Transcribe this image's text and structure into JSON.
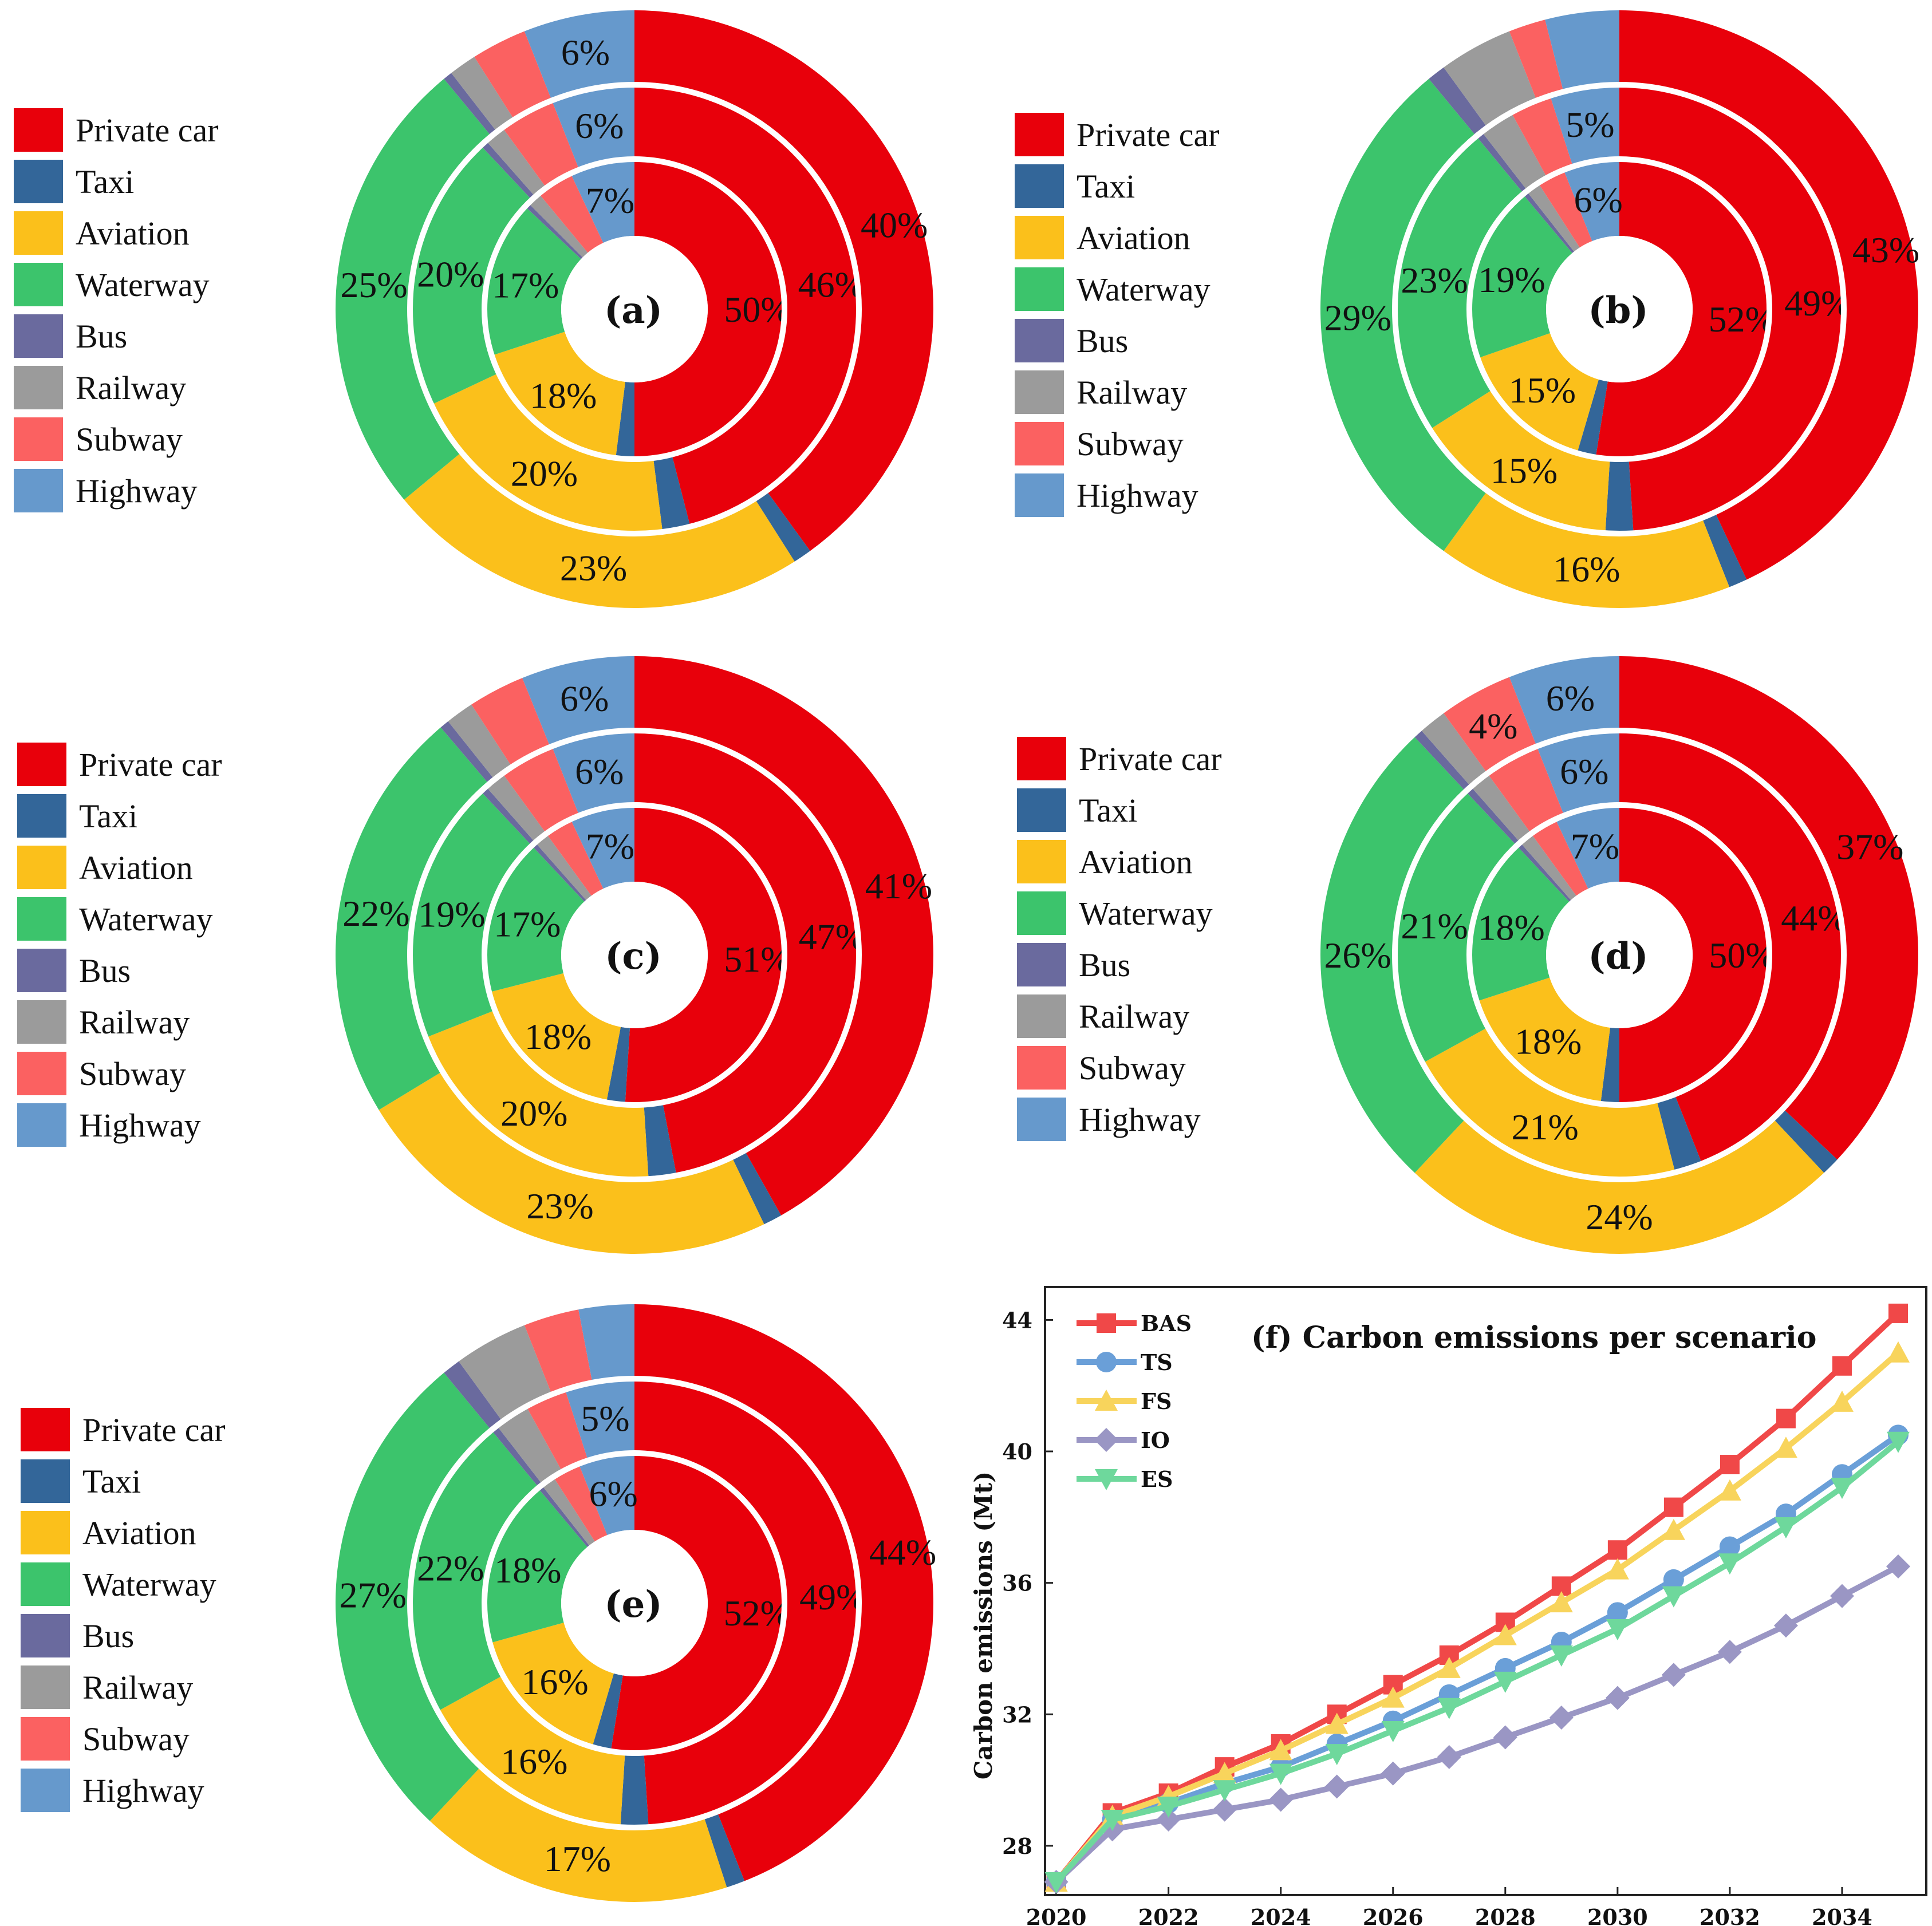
{
  "categories": [
    {
      "key": "private_car",
      "label": "Private car",
      "color": "#e8000b"
    },
    {
      "key": "taxi",
      "label": "Taxi",
      "color": "#336699"
    },
    {
      "key": "aviation",
      "label": "Aviation",
      "color": "#fbc01b"
    },
    {
      "key": "waterway",
      "label": "Waterway",
      "color": "#3cc46c"
    },
    {
      "key": "bus",
      "label": "Bus",
      "color": "#6a6a9e"
    },
    {
      "key": "railway",
      "label": "Railway",
      "color": "#9b9b9b"
    },
    {
      "key": "subway",
      "label": "Subway",
      "color": "#fb6161"
    },
    {
      "key": "highway",
      "label": "Highway",
      "color": "#6699cc"
    }
  ],
  "chart_data": [
    {
      "type": "pie",
      "subtype": "nested-donut",
      "title": "(a)",
      "ring_order": [
        "inner",
        "middle",
        "outer"
      ],
      "rings": [
        {
          "ring": "inner",
          "values": [
            50,
            2,
            18,
            17,
            0.5,
            1.5,
            4,
            7
          ],
          "labels": [
            "50%",
            "",
            "18%",
            "17%",
            "",
            "",
            "",
            "7%"
          ]
        },
        {
          "ring": "middle",
          "values": [
            46,
            2,
            20,
            20,
            0.5,
            1.5,
            4,
            6
          ],
          "labels": [
            "46%",
            "",
            "20%",
            "20%",
            "",
            "",
            "",
            "6%"
          ]
        },
        {
          "ring": "outer",
          "values": [
            40,
            1,
            23,
            25,
            0.5,
            1.5,
            3,
            6
          ],
          "labels": [
            "40%",
            "",
            "23%",
            "25%",
            "",
            "",
            "",
            "6%"
          ]
        }
      ]
    },
    {
      "type": "pie",
      "subtype": "nested-donut",
      "title": "(b)",
      "ring_order": [
        "inner",
        "middle",
        "outer"
      ],
      "rings": [
        {
          "ring": "inner",
          "values": [
            52,
            2,
            15,
            19,
            0.5,
            1.5,
            3,
            6
          ],
          "labels": [
            "52%",
            "",
            "15%",
            "19%",
            "",
            "",
            "",
            "6%"
          ]
        },
        {
          "ring": "middle",
          "values": [
            49,
            2,
            15,
            23,
            0.5,
            2.5,
            3,
            5
          ],
          "labels": [
            "49%",
            "",
            "15%",
            "23%",
            "",
            "",
            "",
            "5%"
          ]
        },
        {
          "ring": "outer",
          "values": [
            43,
            1,
            16,
            29,
            1,
            4,
            2,
            4
          ],
          "labels": [
            "43%",
            "",
            "16%",
            "29%",
            "",
            "",
            "",
            ""
          ]
        }
      ]
    },
    {
      "type": "pie",
      "subtype": "nested-donut",
      "title": "(c)",
      "ring_order": [
        "inner",
        "middle",
        "outer"
      ],
      "rings": [
        {
          "ring": "inner",
          "values": [
            51,
            2,
            18,
            17,
            0.5,
            1.5,
            3,
            7
          ],
          "labels": [
            "51%",
            "",
            "18%",
            "17%",
            "",
            "",
            "",
            "7%"
          ]
        },
        {
          "ring": "middle",
          "values": [
            47,
            2,
            20,
            19,
            0.5,
            1.5,
            4,
            6
          ],
          "labels": [
            "47%",
            "",
            "20%",
            "19%",
            "",
            "",
            "",
            "6%"
          ]
        },
        {
          "ring": "outer",
          "values": [
            41,
            1,
            23,
            22,
            0.5,
            1.5,
            3,
            6
          ],
          "labels": [
            "41%",
            "",
            "23%",
            "22%",
            "",
            "",
            "",
            "6%"
          ]
        }
      ]
    },
    {
      "type": "pie",
      "subtype": "nested-donut",
      "title": "(d)",
      "ring_order": [
        "inner",
        "middle",
        "outer"
      ],
      "rings": [
        {
          "ring": "inner",
          "values": [
            50,
            2,
            18,
            18,
            0.5,
            1.5,
            3,
            7
          ],
          "labels": [
            "50%",
            "",
            "18%",
            "18%",
            "",
            "",
            "",
            "7%"
          ]
        },
        {
          "ring": "middle",
          "values": [
            44,
            2,
            21,
            21,
            0.5,
            1.5,
            4,
            6
          ],
          "labels": [
            "44%",
            "",
            "21%",
            "21%",
            "",
            "",
            "",
            "6%"
          ]
        },
        {
          "ring": "outer",
          "values": [
            37,
            1,
            24,
            26,
            0.5,
            1.5,
            4,
            6
          ],
          "labels": [
            "37%",
            "",
            "24%",
            "26%",
            "",
            "",
            "4%",
            "6%"
          ]
        }
      ]
    },
    {
      "type": "pie",
      "subtype": "nested-donut",
      "title": "(e)",
      "ring_order": [
        "inner",
        "middle",
        "outer"
      ],
      "rings": [
        {
          "ring": "inner",
          "values": [
            52,
            2,
            16,
            18,
            0.5,
            1.5,
            3,
            6
          ],
          "labels": [
            "52%",
            "",
            "16%",
            "18%",
            "",
            "",
            "",
            "6%"
          ]
        },
        {
          "ring": "middle",
          "values": [
            49,
            2,
            16,
            22,
            0.5,
            2.5,
            3,
            5
          ],
          "labels": [
            "49%",
            "",
            "16%",
            "22%",
            "",
            "",
            "",
            "5%"
          ]
        },
        {
          "ring": "outer",
          "values": [
            44,
            1,
            17,
            27,
            1,
            4,
            3,
            3
          ],
          "labels": [
            "44%",
            "",
            "17%",
            "27%",
            "",
            "",
            "",
            ""
          ]
        }
      ]
    },
    {
      "type": "line",
      "title": "(f) Carbon emissions per scenario",
      "xlabel": "",
      "ylabel": "Carbon emissions (Mt)",
      "x": [
        2020,
        2021,
        2022,
        2023,
        2024,
        2025,
        2026,
        2027,
        2028,
        2029,
        2030,
        2031,
        2032,
        2033,
        2034,
        2035
      ],
      "xticks": [
        "2020",
        "2022",
        "2024",
        "2026",
        "2028",
        "2030",
        "2032",
        "2034"
      ],
      "yticks": [
        "28",
        "32",
        "36",
        "40",
        "44"
      ],
      "xlim": [
        2019.8,
        2035.5
      ],
      "ylim": [
        26.5,
        45.0
      ],
      "series": [
        {
          "name": "BAS",
          "color": "#f04848",
          "marker": "square",
          "values": [
            26.9,
            29.0,
            29.6,
            30.4,
            31.1,
            32.0,
            32.9,
            33.8,
            34.8,
            35.9,
            37.0,
            38.3,
            39.6,
            41.0,
            42.6,
            44.2
          ]
        },
        {
          "name": "TS",
          "color": "#6a9fd8",
          "marker": "circle",
          "values": [
            26.9,
            28.8,
            29.3,
            29.9,
            30.4,
            31.1,
            31.8,
            32.6,
            33.4,
            34.2,
            35.1,
            36.1,
            37.1,
            38.1,
            39.3,
            40.5
          ]
        },
        {
          "name": "FS",
          "color": "#f8d45c",
          "marker": "triangle-up",
          "values": [
            26.9,
            28.9,
            29.5,
            30.2,
            30.9,
            31.7,
            32.5,
            33.4,
            34.4,
            35.4,
            36.4,
            37.6,
            38.8,
            40.1,
            41.5,
            43.0
          ]
        },
        {
          "name": "IO",
          "color": "#9a96c4",
          "marker": "diamond",
          "values": [
            26.9,
            28.5,
            28.8,
            29.1,
            29.4,
            29.8,
            30.2,
            30.7,
            31.3,
            31.9,
            32.5,
            33.2,
            33.9,
            34.7,
            35.6,
            36.5
          ]
        },
        {
          "name": "ES",
          "color": "#6ed89c",
          "marker": "triangle-down",
          "values": [
            26.9,
            28.8,
            29.2,
            29.7,
            30.2,
            30.8,
            31.5,
            32.2,
            33.0,
            33.8,
            34.6,
            35.6,
            36.6,
            37.7,
            38.9,
            40.3
          ]
        }
      ]
    }
  ]
}
